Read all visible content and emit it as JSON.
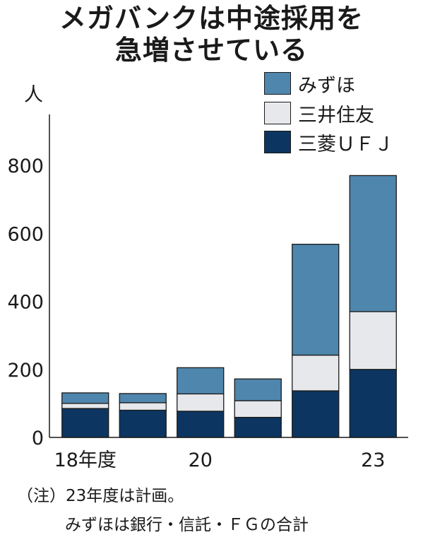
{
  "title_line1": "メガバンクは中途採用を",
  "title_line2": "急増させている",
  "unit_label": "人",
  "legend": [
    {
      "label": "みずほ",
      "color": "#4f86ad"
    },
    {
      "label": "三井住友",
      "color": "#e6e8ec"
    },
    {
      "label": "三菱ＵＦＪ",
      "color": "#0c3661"
    }
  ],
  "notes": {
    "line1": "（注）23年度は計画。",
    "line2": "みずほは銀行・信託・ＦＧの合計"
  },
  "chart_data": {
    "type": "bar",
    "stacked": true,
    "x_tick_labels": [
      "18年度",
      "",
      "20",
      "",
      "",
      "23"
    ],
    "ylim": [
      0,
      800
    ],
    "y_ticks": [
      0,
      200,
      400,
      600,
      800
    ],
    "series": [
      {
        "name": "三菱ＵＦＪ",
        "color": "#0c3661",
        "values": [
          85,
          80,
          77,
          59,
          137,
          200
        ]
      },
      {
        "name": "三井住友",
        "color": "#e6e8ec",
        "values": [
          15,
          22,
          51,
          49,
          105,
          170
        ]
      },
      {
        "name": "みずほ",
        "color": "#4f86ad",
        "values": [
          31,
          27,
          77,
          64,
          326,
          400
        ]
      }
    ]
  }
}
